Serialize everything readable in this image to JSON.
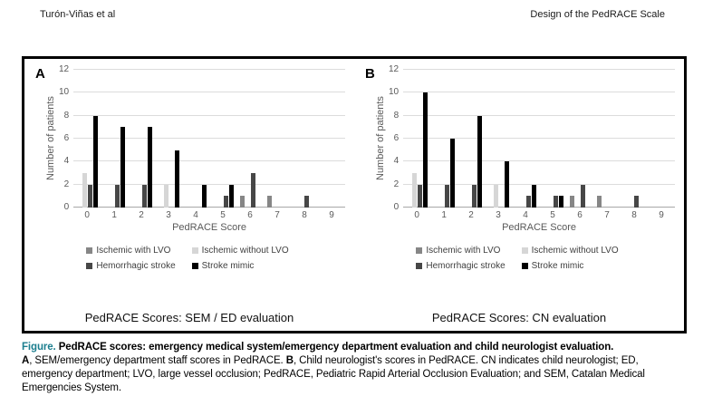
{
  "header": {
    "left": "Turón-Viñas et al",
    "right": "Design of the PedRACE Scale"
  },
  "colors": {
    "with_lvo": "#868686",
    "without_lvo": "#d6d6d6",
    "hemorrhagic": "#474747",
    "mimic": "#000000",
    "gridline": "#dcdcdc",
    "axis_text": "#595959",
    "caption_accent": "#1b7e8e"
  },
  "chart_data": [
    {
      "type": "bar",
      "panel_label": "A",
      "title": "PedRACE Scores: SEM / ED evaluation",
      "xlabel": "PedRACE Score",
      "ylabel": "Number of patients",
      "ylim": [
        0,
        12
      ],
      "yticks": [
        0,
        2,
        4,
        6,
        8,
        10,
        12
      ],
      "grid": true,
      "legend_position": "below",
      "categories": [
        0,
        1,
        2,
        3,
        4,
        5,
        6,
        7,
        8,
        9
      ],
      "series": [
        {
          "name": "Ischemic with LVO",
          "color_key": "with_lvo",
          "values": [
            0,
            0,
            0,
            0,
            0,
            0,
            1,
            1,
            0,
            0
          ]
        },
        {
          "name": "Ischemic without LVO",
          "color_key": "without_lvo",
          "values": [
            3,
            0,
            0,
            2,
            0,
            0,
            0,
            0,
            0,
            0
          ]
        },
        {
          "name": "Hemorrhagic stroke",
          "color_key": "hemorrhagic",
          "values": [
            2,
            2,
            2,
            0,
            0,
            1,
            3,
            0,
            1,
            0
          ]
        },
        {
          "name": "Stroke mimic",
          "color_key": "mimic",
          "values": [
            8,
            7,
            7,
            5,
            2,
            2,
            0,
            0,
            0,
            0
          ]
        }
      ]
    },
    {
      "type": "bar",
      "panel_label": "B",
      "title": "PedRACE Scores: CN evaluation",
      "xlabel": "PedRACE Score",
      "ylabel": "Number of patients",
      "ylim": [
        0,
        12
      ],
      "yticks": [
        0,
        2,
        4,
        6,
        8,
        10,
        12
      ],
      "grid": true,
      "legend_position": "below",
      "categories": [
        0,
        1,
        2,
        3,
        4,
        5,
        6,
        7,
        8,
        9
      ],
      "series": [
        {
          "name": "Ischemic with LVO",
          "color_key": "with_lvo",
          "values": [
            0,
            0,
            0,
            0,
            0,
            0,
            1,
            1,
            0,
            0
          ]
        },
        {
          "name": "Ischemic without LVO",
          "color_key": "without_lvo",
          "values": [
            3,
            0,
            0,
            2,
            0,
            0,
            0,
            0,
            0,
            0
          ]
        },
        {
          "name": "Hemorrhagic stroke",
          "color_key": "hemorrhagic",
          "values": [
            2,
            2,
            2,
            0,
            1,
            1,
            2,
            0,
            1,
            0
          ]
        },
        {
          "name": "Stroke mimic",
          "color_key": "mimic",
          "values": [
            10,
            6,
            8,
            4,
            2,
            1,
            0,
            0,
            0,
            0
          ]
        }
      ]
    }
  ],
  "caption": {
    "figure_label": "Figure.",
    "title": " PedRACE scores: emergency medical system/emergency department evaluation and child neurologist evaluation.",
    "a_label": "A",
    "a_text": ", SEM/emergency department staff scores in PedRACE. ",
    "b_label": "B",
    "b_text": ", Child neurologist's scores in PedRACE. CN indicates child neurologist; ED, emergency department; LVO, large vessel occlusion; PedRACE, Pediatric Rapid Arterial Occlusion Evaluation; and SEM, Catalan Medical Emergencies System."
  }
}
